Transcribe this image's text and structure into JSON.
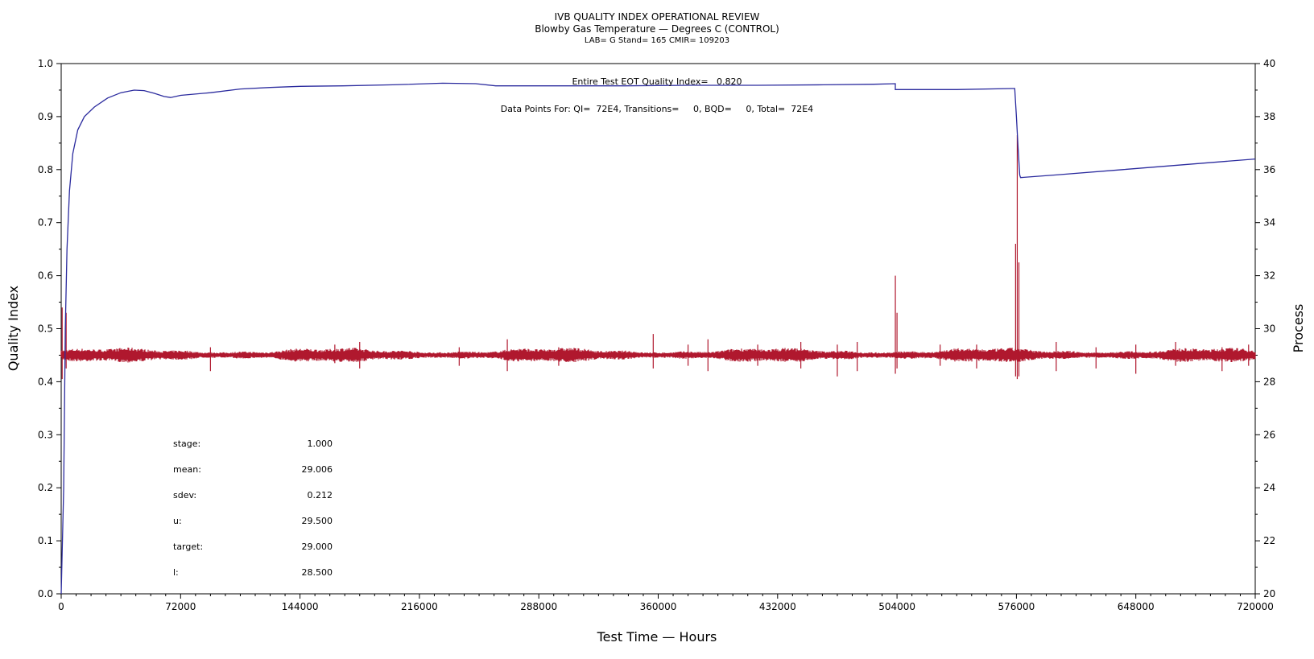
{
  "chart_data": {
    "type": "line",
    "title": "IVB QUALITY INDEX OPERATIONAL REVIEW",
    "subtitle": "Blowby Gas Temperature — Degrees C (CONTROL)",
    "subtitle2": "LAB= G Stand= 165 CMIR= 109203",
    "xlabel": "Test Time — Hours",
    "ylabel_left": "Quality Index",
    "ylabel_right": "Process",
    "xlim": [
      0,
      720000
    ],
    "ylim_left": [
      0,
      1.0
    ],
    "ylim_right": [
      20,
      40
    ],
    "x_ticks": [
      0,
      72000,
      144000,
      216000,
      288000,
      360000,
      432000,
      504000,
      576000,
      648000,
      720000
    ],
    "x_tick_labels": [
      "0",
      "72000",
      "144000",
      "216000",
      "288000",
      "360000",
      "432000",
      "504000",
      "576000",
      "648000",
      "720000"
    ],
    "y_left_ticks": [
      0.0,
      0.1,
      0.2,
      0.3,
      0.4,
      0.5,
      0.6,
      0.7,
      0.8,
      0.9,
      1.0
    ],
    "y_left_tick_labels": [
      "0.0",
      "0.1",
      "0.2",
      "0.3",
      "0.4",
      "0.5",
      "0.6",
      "0.7",
      "0.8",
      "0.9",
      "1.0"
    ],
    "y_right_ticks": [
      20,
      22,
      24,
      26,
      28,
      30,
      32,
      34,
      36,
      38,
      40
    ],
    "y_right_tick_labels": [
      "20",
      "22",
      "24",
      "26",
      "28",
      "30",
      "32",
      "34",
      "36",
      "38",
      "40"
    ],
    "annotations": {
      "eot": "Entire Test EOT Quality Index=   0.820",
      "data_points": "Data Points For: QI=  72E4, Transitions=     0, BQD=     0, Total=  72E4"
    },
    "stats": [
      {
        "label": "stage:",
        "value": "1.000"
      },
      {
        "label": "mean:",
        "value": "29.006"
      },
      {
        "label": "sdev:",
        "value": "0.212"
      },
      {
        "label": "u:",
        "value": "29.500"
      },
      {
        "label": "target:",
        "value": "29.000"
      },
      {
        "label": "l:",
        "value": "28.500"
      }
    ],
    "series": [
      {
        "axis": "left",
        "color": "#2b2b9e",
        "x": [
          0,
          1500,
          2500,
          3500,
          5000,
          7000,
          10000,
          14000,
          20000,
          28000,
          36000,
          44000,
          50000,
          56000,
          62000,
          66000,
          72000,
          90000,
          108000,
          126000,
          144000,
          170000,
          200000,
          230000,
          250000,
          262000,
          300000,
          340000,
          380000,
          420000,
          460000,
          490000,
          503000,
          503001,
          520000,
          540000,
          574000,
          575000,
          576000,
          577000,
          578000,
          578500,
          600000,
          640000,
          680000,
          720000
        ],
        "values": [
          0.0,
          0.2,
          0.5,
          0.65,
          0.76,
          0.83,
          0.875,
          0.9,
          0.918,
          0.935,
          0.945,
          0.95,
          0.949,
          0.944,
          0.938,
          0.936,
          0.94,
          0.945,
          0.952,
          0.955,
          0.957,
          0.958,
          0.96,
          0.963,
          0.962,
          0.958,
          0.958,
          0.958,
          0.959,
          0.959,
          0.96,
          0.961,
          0.962,
          0.951,
          0.951,
          0.951,
          0.953,
          0.953,
          0.9,
          0.84,
          0.79,
          0.785,
          0.79,
          0.8,
          0.81,
          0.82
        ]
      },
      {
        "axis": "right",
        "color": "#b0182e",
        "mean": 29.006,
        "band_hw": 0.22,
        "x": [
          0,
          72000,
          144000,
          216000,
          288000,
          360000,
          432000,
          504000,
          576000,
          648000,
          720000
        ],
        "values": [
          29.0,
          29.0,
          29.0,
          29.0,
          29.0,
          29.0,
          29.0,
          29.0,
          29.0,
          29.0,
          29.0
        ],
        "spikes": [
          {
            "x": 600,
            "lo": 28.1,
            "hi": 30.8
          },
          {
            "x": 3000,
            "lo": 28.5,
            "hi": 30.6
          },
          {
            "x": 90000,
            "lo": 28.4,
            "hi": 29.3
          },
          {
            "x": 165000,
            "lo": 28.7,
            "hi": 29.4
          },
          {
            "x": 180000,
            "lo": 28.5,
            "hi": 29.5
          },
          {
            "x": 240000,
            "lo": 28.6,
            "hi": 29.3
          },
          {
            "x": 269000,
            "lo": 28.4,
            "hi": 29.6
          },
          {
            "x": 300000,
            "lo": 28.6,
            "hi": 29.3
          },
          {
            "x": 357000,
            "lo": 28.5,
            "hi": 29.8
          },
          {
            "x": 378000,
            "lo": 28.6,
            "hi": 29.4
          },
          {
            "x": 390000,
            "lo": 28.4,
            "hi": 29.6
          },
          {
            "x": 420000,
            "lo": 28.6,
            "hi": 29.4
          },
          {
            "x": 446000,
            "lo": 28.5,
            "hi": 29.5
          },
          {
            "x": 468000,
            "lo": 28.2,
            "hi": 29.4
          },
          {
            "x": 480000,
            "lo": 28.4,
            "hi": 29.5
          },
          {
            "x": 503000,
            "lo": 28.3,
            "hi": 32.0
          },
          {
            "x": 504000,
            "lo": 28.5,
            "hi": 30.6
          },
          {
            "x": 530000,
            "lo": 28.6,
            "hi": 29.4
          },
          {
            "x": 552000,
            "lo": 28.5,
            "hi": 29.4
          },
          {
            "x": 575500,
            "lo": 28.2,
            "hi": 33.2
          },
          {
            "x": 576500,
            "lo": 28.1,
            "hi": 37.3
          },
          {
            "x": 577500,
            "lo": 28.2,
            "hi": 32.5
          },
          {
            "x": 600000,
            "lo": 28.4,
            "hi": 29.5
          },
          {
            "x": 624000,
            "lo": 28.5,
            "hi": 29.3
          },
          {
            "x": 648000,
            "lo": 28.3,
            "hi": 29.4
          },
          {
            "x": 672000,
            "lo": 28.6,
            "hi": 29.5
          },
          {
            "x": 700000,
            "lo": 28.4,
            "hi": 29.3
          },
          {
            "x": 716000,
            "lo": 28.6,
            "hi": 29.4
          }
        ]
      }
    ],
    "grid": false,
    "legend": "none"
  }
}
